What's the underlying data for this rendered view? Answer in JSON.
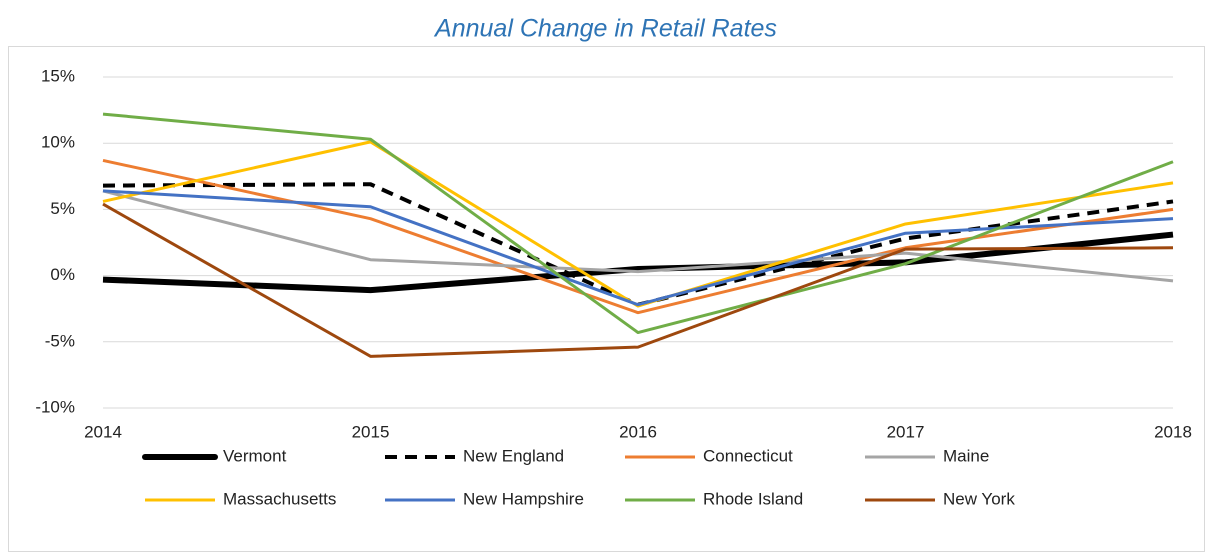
{
  "chart_data": {
    "type": "line",
    "title": "Annual Change in Retail Rates",
    "categories": [
      "2014",
      "2015",
      "2016",
      "2017",
      "2018"
    ],
    "ylim": [
      -10,
      15
    ],
    "yticks": [
      {
        "value": -10,
        "label": "-10%"
      },
      {
        "value": -5,
        "label": "-5%"
      },
      {
        "value": 0,
        "label": "0%"
      },
      {
        "value": 5,
        "label": "5%"
      },
      {
        "value": 10,
        "label": "10%"
      },
      {
        "value": 15,
        "label": "15%"
      }
    ],
    "grid": true,
    "legend": "bottom",
    "series": [
      {
        "name": "Vermont",
        "color": "#000000",
        "style": "thick",
        "values": [
          -0.3,
          -1.1,
          0.5,
          1.0,
          3.1
        ]
      },
      {
        "name": "New England",
        "color": "#000000",
        "style": "dashed",
        "values": [
          6.8,
          6.9,
          -2.2,
          2.8,
          5.6
        ]
      },
      {
        "name": "Connecticut",
        "color": "#ed7d31",
        "values": [
          8.7,
          4.3,
          -2.8,
          2.1,
          5.0
        ]
      },
      {
        "name": "Maine",
        "color": "#a5a5a5",
        "values": [
          6.4,
          1.2,
          0.3,
          1.7,
          -0.4
        ]
      },
      {
        "name": "Massachusetts",
        "color": "#ffc000",
        "values": [
          5.6,
          10.1,
          -2.3,
          3.9,
          7.0
        ]
      },
      {
        "name": "New Hampshire",
        "color": "#4472c4",
        "values": [
          6.4,
          5.2,
          -2.2,
          3.2,
          4.3
        ]
      },
      {
        "name": "Rhode Island",
        "color": "#70ad47",
        "values": [
          12.2,
          10.3,
          -4.3,
          0.9,
          8.6
        ]
      },
      {
        "name": "New York",
        "color": "#9e480e",
        "values": [
          5.4,
          -6.1,
          -5.4,
          2.0,
          2.1
        ]
      }
    ]
  }
}
